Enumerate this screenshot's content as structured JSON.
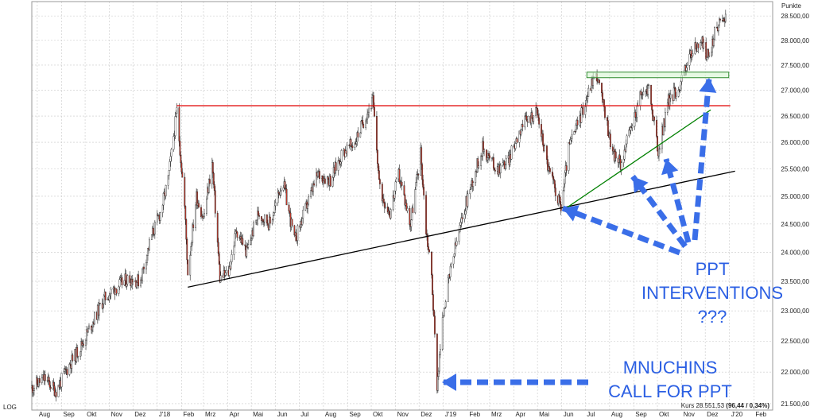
{
  "unit_label": "Punkte",
  "scale_label": "LOG",
  "quote_text": "Kurs 28.551,53",
  "quote_change": "(96,44 / 0,34%)",
  "annotation_ppt": [
    "PPT",
    "INTERVENTIONS",
    "???"
  ],
  "annotation_mnuchin": [
    "MNUCHINS",
    "CALL FOR  PPT"
  ],
  "colors": {
    "candle_up": "#ffffff",
    "candle_down": "#c0392b",
    "wick": "#222222",
    "resistance": "#e00000",
    "support_long": "#000000",
    "support_short": "#008000",
    "box_fill": "#d6f5d0",
    "box_stroke": "#2e8b2e",
    "arrow": "#3a6ee8",
    "grid": "#c8c8c8"
  },
  "chart_data": {
    "type": "candlestick",
    "title": "",
    "ylabel": "Punkte",
    "log_scale": true,
    "grid": true,
    "ylim": [
      21400,
      28800
    ],
    "y_ticks": [
      "21.500,00",
      "22.000,00",
      "22.500,00",
      "23.000,00",
      "23.500,00",
      "24.000,00",
      "24.500,00",
      "25.000,00",
      "25.500,00",
      "26.000,00",
      "26.500,00",
      "27.000,00",
      "27.500,00",
      "28.000,00",
      "28.500,00"
    ],
    "y_tick_values": [
      21500,
      22000,
      22500,
      23000,
      23500,
      24000,
      24500,
      25000,
      25500,
      26000,
      26500,
      27000,
      27500,
      28000,
      28500
    ],
    "xlim": [
      "2017-07-25",
      "2020-02-25"
    ],
    "x_ticks": [
      "Aug",
      "Sep",
      "Okt",
      "Nov",
      "Dez",
      "J'18",
      "Feb",
      "Mrz",
      "Apr",
      "Mai",
      "Jun",
      "Jul",
      "Aug",
      "Sep",
      "Okt",
      "Nov",
      "Dez",
      "J'19",
      "Feb",
      "Mrz",
      "Apr",
      "Mai",
      "Jun",
      "Jul",
      "Aug",
      "Sep",
      "Okt",
      "Nov",
      "Dez",
      "J'20",
      "Feb"
    ],
    "x_tick_dates": [
      "2017-08-01",
      "2017-09-01",
      "2017-10-01",
      "2017-11-01",
      "2017-12-01",
      "2018-01-01",
      "2018-02-01",
      "2018-03-01",
      "2018-04-01",
      "2018-05-01",
      "2018-06-01",
      "2018-07-01",
      "2018-08-01",
      "2018-09-01",
      "2018-10-01",
      "2018-11-01",
      "2018-12-01",
      "2019-01-01",
      "2019-02-01",
      "2019-03-01",
      "2019-04-01",
      "2019-05-01",
      "2019-06-01",
      "2019-07-01",
      "2019-08-01",
      "2019-09-01",
      "2019-10-01",
      "2019-11-01",
      "2019-12-01",
      "2020-01-01",
      "2020-02-01"
    ],
    "close_series": [
      [
        "2017-07-25",
        21750
      ],
      [
        "2017-08-10",
        21900
      ],
      [
        "2017-08-25",
        21700
      ],
      [
        "2017-09-10",
        22100
      ],
      [
        "2017-09-25",
        22400
      ],
      [
        "2017-10-10",
        22800
      ],
      [
        "2017-10-25",
        23200
      ],
      [
        "2017-11-10",
        23400
      ],
      [
        "2017-11-25",
        23550
      ],
      [
        "2017-12-10",
        23500
      ],
      [
        "2017-12-25",
        24300
      ],
      [
        "2018-01-05",
        24700
      ],
      [
        "2018-01-15",
        25300
      ],
      [
        "2018-01-26",
        26600
      ],
      [
        "2018-02-05",
        24800
      ],
      [
        "2018-02-09",
        23650
      ],
      [
        "2018-02-20",
        25000
      ],
      [
        "2018-03-01",
        24600
      ],
      [
        "2018-03-12",
        25600
      ],
      [
        "2018-03-22",
        23550
      ],
      [
        "2018-04-02",
        23650
      ],
      [
        "2018-04-12",
        24400
      ],
      [
        "2018-04-25",
        24000
      ],
      [
        "2018-05-10",
        24700
      ],
      [
        "2018-05-25",
        24500
      ],
      [
        "2018-06-10",
        25300
      ],
      [
        "2018-06-25",
        24200
      ],
      [
        "2018-07-10",
        24800
      ],
      [
        "2018-07-25",
        25400
      ],
      [
        "2018-08-10",
        25300
      ],
      [
        "2018-08-25",
        25800
      ],
      [
        "2018-09-10",
        26000
      ],
      [
        "2018-09-25",
        26550
      ],
      [
        "2018-10-03",
        26800
      ],
      [
        "2018-10-12",
        25100
      ],
      [
        "2018-10-25",
        24700
      ],
      [
        "2018-11-05",
        25400
      ],
      [
        "2018-11-20",
        24500
      ],
      [
        "2018-12-03",
        25800
      ],
      [
        "2018-12-10",
        24400
      ],
      [
        "2018-12-17",
        23600
      ],
      [
        "2018-12-24",
        21800
      ],
      [
        "2019-01-02",
        23100
      ],
      [
        "2019-01-15",
        24000
      ],
      [
        "2019-02-01",
        25000
      ],
      [
        "2019-02-20",
        25900
      ],
      [
        "2019-03-10",
        25500
      ],
      [
        "2019-03-25",
        25650
      ],
      [
        "2019-04-10",
        26300
      ],
      [
        "2019-04-30",
        26600
      ],
      [
        "2019-05-15",
        25500
      ],
      [
        "2019-05-31",
        24800
      ],
      [
        "2019-06-10",
        25900
      ],
      [
        "2019-06-25",
        26500
      ],
      [
        "2019-07-10",
        27200
      ],
      [
        "2019-07-16",
        27300
      ],
      [
        "2019-08-05",
        25800
      ],
      [
        "2019-08-15",
        25600
      ],
      [
        "2019-08-25",
        26100
      ],
      [
        "2019-09-10",
        26900
      ],
      [
        "2019-09-20",
        27050
      ],
      [
        "2019-10-02",
        25800
      ],
      [
        "2019-10-15",
        26800
      ],
      [
        "2019-10-30",
        27100
      ],
      [
        "2019-11-10",
        27650
      ],
      [
        "2019-11-25",
        28000
      ],
      [
        "2019-12-05",
        27650
      ],
      [
        "2019-12-15",
        28250
      ],
      [
        "2019-12-27",
        28550
      ]
    ],
    "lines": [
      {
        "name": "resistance",
        "from": [
          "2018-01-26",
          26700
        ],
        "to": [
          "2020-01-02",
          26700
        ]
      },
      {
        "name": "support-long",
        "from": [
          "2018-02-09",
          23400
        ],
        "to": [
          "2020-01-08",
          25460
        ]
      },
      {
        "name": "support-short",
        "from": [
          "2019-06-03",
          24750
        ],
        "to": [
          "2019-12-08",
          26620
        ]
      }
    ],
    "zones": [
      {
        "name": "support-box",
        "from": "2019-07-03",
        "to": "2019-12-31",
        "y_low": 27250,
        "y_high": 27360
      }
    ]
  }
}
